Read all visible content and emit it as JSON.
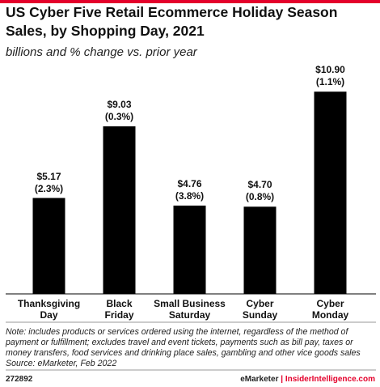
{
  "chart_data": {
    "type": "bar",
    "title": "US Cyber Five Retail Ecommerce Holiday Season Sales, by Shopping Day, 2021",
    "subtitle": "billions and % change vs. prior year",
    "categories": [
      "Thanksgiving\nDay",
      "Black\nFriday",
      "Small Business\nSaturday",
      "Cyber\nSunday",
      "Cyber\nMonday"
    ],
    "values": [
      5.17,
      9.03,
      4.76,
      4.7,
      10.9
    ],
    "value_labels": [
      "$5.17",
      "$9.03",
      "$4.76",
      "$4.70",
      "$10.90"
    ],
    "changes": [
      2.3,
      0.3,
      3.8,
      0.8,
      1.1
    ],
    "change_labels": [
      "(2.3%)",
      "(0.3%)",
      "(3.8%)",
      "(0.8%)",
      "(1.1%)"
    ],
    "color": "#000000",
    "ylim": [
      0,
      12
    ],
    "note": "Note: includes products or services ordered using the internet, regardless of the method of payment or fulfillment; excludes travel and event tickets, payments such as bill pay, taxes or money transfers, food services and drinking place sales, gambling and other vice goods sales",
    "source": "Source: eMarketer, Feb 2022",
    "chart_id": "272892",
    "brand": "eMarketer",
    "separator": "|",
    "site": "InsiderIntelligence.com"
  }
}
